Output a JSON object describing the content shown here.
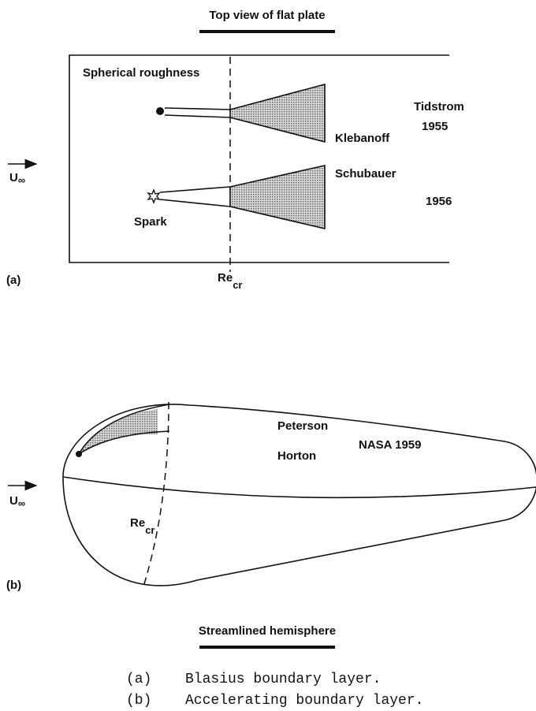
{
  "figure_a": {
    "title": "Top view of flat plate",
    "upper_label": "Spherical roughness",
    "tidstrom": "Tidstrom",
    "year_1955": "1955",
    "klebanoff": "Klebanoff",
    "schubauer": "Schubauer",
    "year_1956": "1956",
    "spark": "Spark",
    "panel": "(a)",
    "velocity": {
      "main": "U",
      "sub": "∞"
    },
    "reynolds": {
      "main": "Re",
      "sub": "cr"
    }
  },
  "figure_b": {
    "peterson": "Peterson",
    "horton": "Horton",
    "nasa": "NASA 1959",
    "panel": "(b)",
    "velocity": {
      "main": "U",
      "sub": "∞"
    },
    "reynolds": {
      "main": "Re",
      "sub": "cr"
    },
    "title": "Streamlined hemisphere"
  },
  "captions": [
    {
      "label": "(a)",
      "text": "Blasius boundary layer."
    },
    {
      "label": "(b)",
      "text": "Accelerating boundary layer."
    }
  ]
}
